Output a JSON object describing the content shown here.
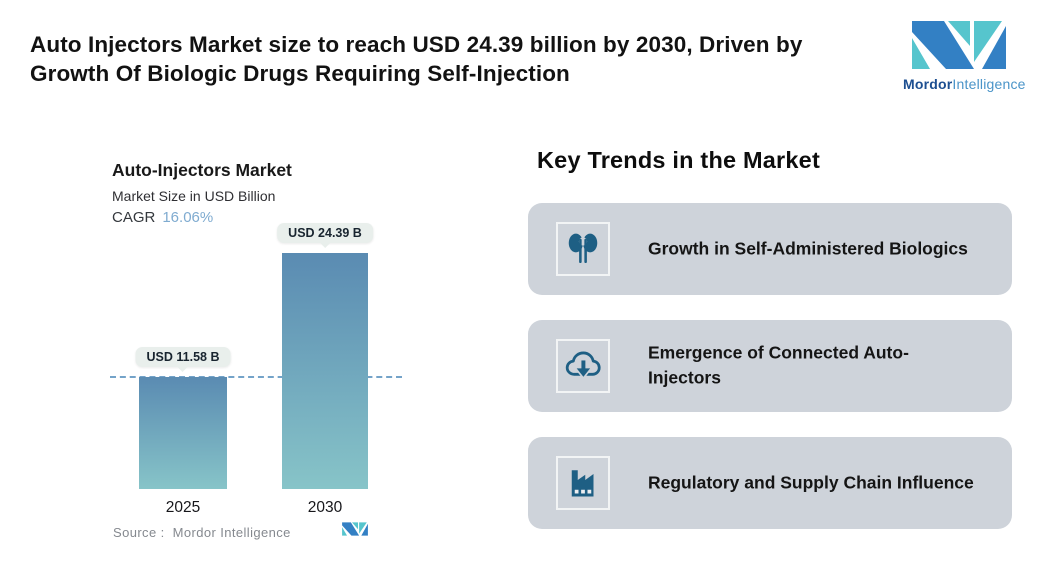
{
  "header": {
    "title": "Auto Injectors Market size to reach USD 24.39 billion by 2030, Driven by Growth Of Biologic Drugs Requiring Self-Injection",
    "logo": {
      "name_bold": "Mordor",
      "name_light": "Intelligence"
    }
  },
  "chart_data": {
    "type": "bar",
    "title": "Auto-Injectors Market",
    "subtitle": "Market Size in USD Billion",
    "cagr_label": "CAGR",
    "cagr_value": "16.06%",
    "categories": [
      "2025",
      "2030"
    ],
    "values": [
      11.58,
      24.39
    ],
    "data_labels": [
      "USD 11.58 B",
      "USD 24.39 B"
    ],
    "unit": "USD Billion",
    "ylim": [
      0,
      24.39
    ],
    "baseline_at_value": 11.58,
    "grid": false,
    "legend": "none",
    "source": "Source :  Mordor Intelligence"
  },
  "trends": {
    "heading": "Key Trends in the Market",
    "items": [
      {
        "icon": "kidneys-icon",
        "title": "Growth in Self-Administered Biologics"
      },
      {
        "icon": "cloud-download-icon",
        "title": "Emergence of Connected Auto-Injectors"
      },
      {
        "icon": "factory-icon",
        "title": "Regulatory and Supply Chain Influence"
      }
    ]
  },
  "colors": {
    "card_bg": "#ced3da",
    "icon_teal": "#1e5f84",
    "bar_top": "#5a8bb2",
    "bar_bottom": "#87c4c8",
    "dashed_line": "#74a3c9",
    "bubble_bg": "#e9efec",
    "cagr_value": "#7fabd0",
    "logo_blue": "#3380c4",
    "logo_teal": "#56c5cd",
    "logo_text_dark": "#1d4f91",
    "logo_text_light": "#4a94c8",
    "text_dark": "#141414",
    "source_text": "#85898f"
  }
}
